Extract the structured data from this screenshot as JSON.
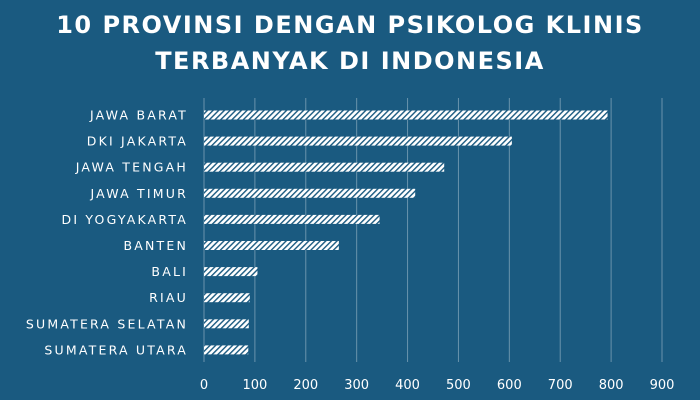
{
  "chart_data": {
    "type": "bar",
    "orientation": "horizontal",
    "title_lines": [
      "10 PROVINSI DENGAN PSIKOLOG KLINIS",
      "TERBANYAK DI INDONESIA"
    ],
    "categories": [
      "JAWA BARAT",
      "DKI JAKARTA",
      "JAWA TENGAH",
      "JAWA TIMUR",
      "DI YOGYAKARTA",
      "BANTEN",
      "BALI",
      "RIAU",
      "SUMATERA SELATAN",
      "SUMATERA UTARA"
    ],
    "values": [
      793,
      605,
      472,
      415,
      345,
      265,
      105,
      90,
      88,
      87
    ],
    "xlim": [
      0,
      900
    ],
    "xticks": [
      0,
      100,
      200,
      300,
      400,
      500,
      600,
      700,
      800,
      900
    ],
    "grid": "vertical",
    "legend": "none",
    "colors": {
      "background": "#1a5a80",
      "bar": "#ffffff",
      "text": "#ffffff"
    }
  }
}
